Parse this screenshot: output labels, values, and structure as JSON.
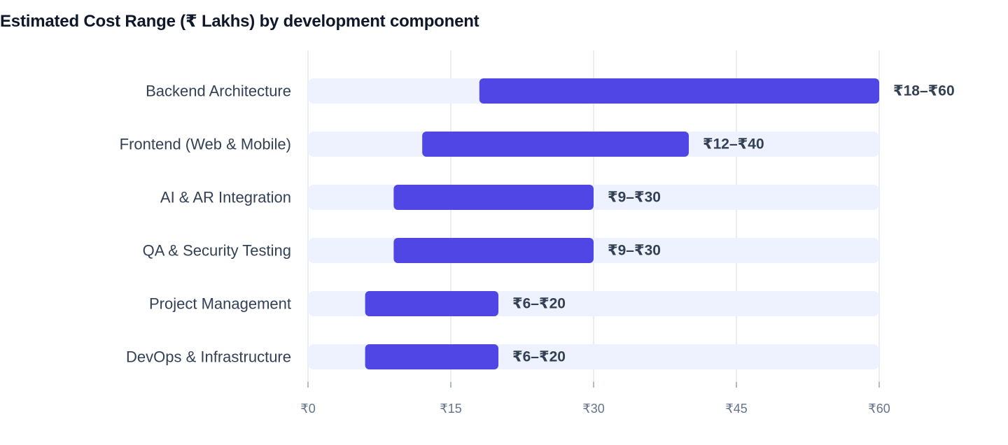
{
  "chart_data": {
    "type": "bar",
    "title": "Estimated Cost Range (₹ Lakhs) by development component",
    "xlim": [
      0,
      60
    ],
    "x_ticks": [
      0,
      15,
      30,
      45,
      60
    ],
    "x_tick_labels": [
      "₹0",
      "₹15",
      "₹30",
      "₹45",
      "₹60"
    ],
    "grid": true,
    "colors": {
      "bar": "#4f46e5",
      "track": "#eef2ff",
      "grid": "#e2e8f0"
    },
    "categories": [
      "Backend Architecture",
      "Frontend (Web & Mobile)",
      "AI & AR Integration",
      "QA & Security Testing",
      "Project Management",
      "DevOps & Infrastructure"
    ],
    "ranges": [
      [
        18,
        60
      ],
      [
        12,
        40
      ],
      [
        9,
        30
      ],
      [
        9,
        30
      ],
      [
        6,
        20
      ],
      [
        6,
        20
      ]
    ],
    "value_labels": [
      "₹18–₹60",
      "₹12–₹40",
      "₹9–₹30",
      "₹9–₹30",
      "₹6–₹20",
      "₹6–₹20"
    ]
  }
}
